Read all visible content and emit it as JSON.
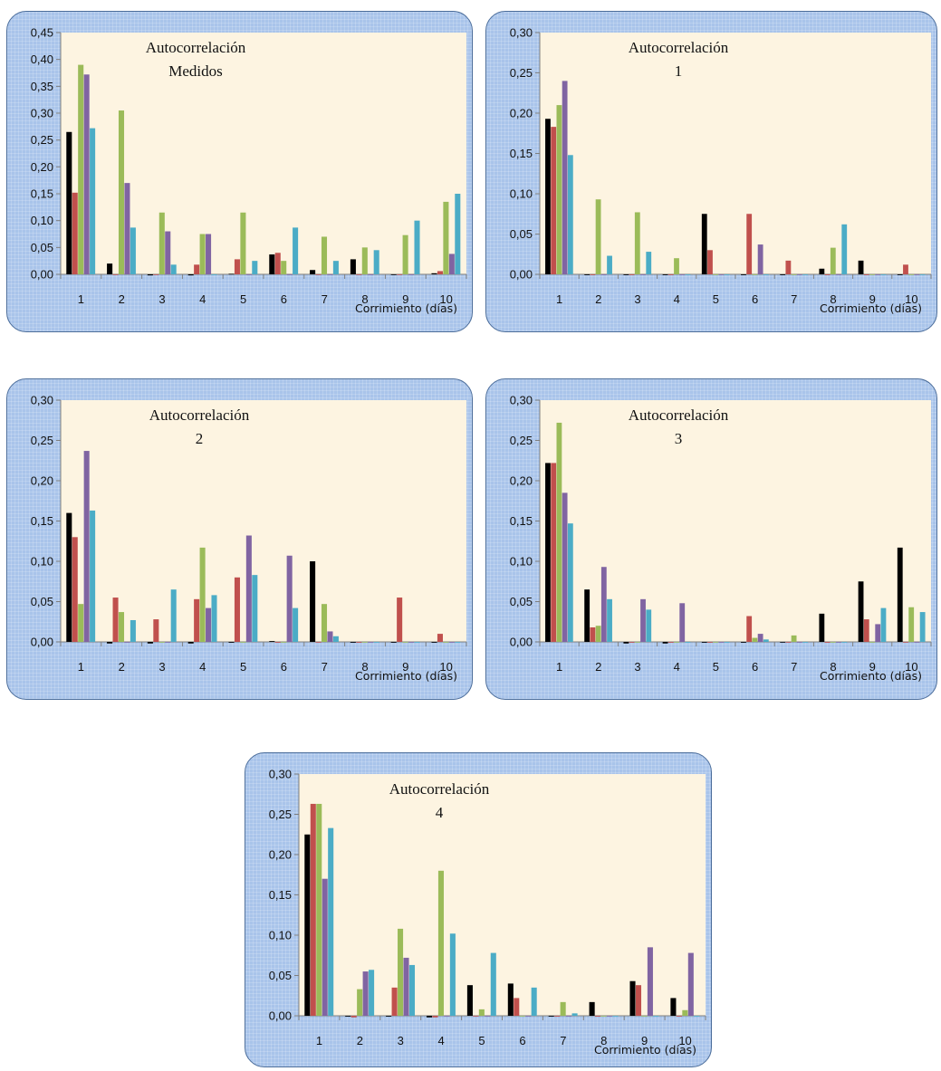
{
  "colors": {
    "series": [
      "#000000",
      "#c0504d",
      "#9bbb59",
      "#8064a2",
      "#4bacc6"
    ],
    "plot_background": "#fdf4e1",
    "panel_background": "#a9c4ea"
  },
  "chart_data": [
    {
      "type": "bar",
      "title_lines": [
        "Autocorrelación",
        "Medidos"
      ],
      "xlabel": "Corrimiento (días)",
      "ylim": [
        0,
        0.45
      ],
      "yticks": [
        "0,00",
        "0,05",
        "0,10",
        "0,15",
        "0,20",
        "0,25",
        "0,30",
        "0,35",
        "0,40",
        "0,45"
      ],
      "categories": [
        "1",
        "2",
        "3",
        "4",
        "5",
        "6",
        "7",
        "8",
        "9",
        "10"
      ],
      "grid": false,
      "legend": "none",
      "series": [
        {
          "values": [
            0.265,
            0.02,
            -0.002,
            -0.002,
            0.001,
            0.037,
            0.008,
            0.028,
            -0.001,
            0.002
          ]
        },
        {
          "values": [
            0.152,
            -0.001,
            0.0,
            0.018,
            0.028,
            0.04,
            -0.001,
            0.0,
            -0.001,
            0.006
          ]
        },
        {
          "values": [
            0.39,
            0.305,
            0.115,
            0.075,
            0.115,
            0.025,
            0.07,
            0.05,
            0.073,
            0.135
          ]
        },
        {
          "values": [
            0.372,
            0.17,
            0.08,
            0.075,
            0.0,
            0.0,
            0.0,
            -0.001,
            0.0,
            0.038
          ]
        },
        {
          "values": [
            0.272,
            0.087,
            0.018,
            0.0,
            0.025,
            0.087,
            0.025,
            0.045,
            0.1,
            0.15
          ]
        }
      ]
    },
    {
      "type": "bar",
      "title_lines": [
        "Autocorrelación",
        "1"
      ],
      "xlabel": "Corrimiento (días)",
      "ylim": [
        0,
        0.3
      ],
      "yticks": [
        "0,00",
        "0,05",
        "0,10",
        "0,15",
        "0,20",
        "0,25",
        "0,30"
      ],
      "categories": [
        "1",
        "2",
        "3",
        "4",
        "5",
        "6",
        "7",
        "8",
        "9",
        "10"
      ],
      "grid": false,
      "legend": "none",
      "series": [
        {
          "values": [
            0.193,
            -0.001,
            -0.001,
            -0.001,
            0.075,
            -0.001,
            -0.001,
            0.007,
            0.017,
            -0.001
          ]
        },
        {
          "values": [
            0.183,
            -0.001,
            -0.001,
            -0.001,
            0.03,
            0.075,
            0.017,
            -0.001,
            -0.001,
            0.012
          ]
        },
        {
          "values": [
            0.21,
            0.093,
            0.077,
            0.02,
            0.0,
            0.0,
            0.0,
            0.033,
            0.0,
            0.0
          ]
        },
        {
          "values": [
            0.24,
            0.0,
            0.0,
            0.0,
            0.0,
            0.037,
            0.0,
            0.0,
            0.0,
            0.0
          ]
        },
        {
          "values": [
            0.148,
            0.023,
            0.028,
            0.0,
            0.0,
            0.0,
            0.0,
            0.062,
            0.0,
            0.0
          ]
        }
      ]
    },
    {
      "type": "bar",
      "title_lines": [
        "Autocorrelación",
        "2"
      ],
      "xlabel": "Corrimiento (días)",
      "ylim": [
        0,
        0.3
      ],
      "yticks": [
        "0,00",
        "0,05",
        "0,10",
        "0,15",
        "0,20",
        "0,25",
        "0,30"
      ],
      "categories": [
        "1",
        "2",
        "3",
        "4",
        "5",
        "6",
        "7",
        "8",
        "9",
        "10"
      ],
      "grid": false,
      "legend": "none",
      "series": [
        {
          "values": [
            0.16,
            -0.002,
            -0.002,
            -0.002,
            -0.001,
            0.001,
            0.1,
            -0.001,
            -0.001,
            -0.001
          ]
        },
        {
          "values": [
            0.13,
            0.055,
            0.028,
            0.053,
            0.08,
            -0.001,
            0.0,
            -0.001,
            0.055,
            0.01
          ]
        },
        {
          "values": [
            0.047,
            0.037,
            0.0,
            0.117,
            0.0,
            0.0,
            0.047,
            0.0,
            0.0,
            0.0
          ]
        },
        {
          "values": [
            0.237,
            0.0,
            0.0,
            0.042,
            0.132,
            0.107,
            0.013,
            0.0,
            0.0,
            0.0
          ]
        },
        {
          "values": [
            0.163,
            0.027,
            0.065,
            0.058,
            0.083,
            0.042,
            0.007,
            0.0,
            0.0,
            0.0
          ]
        }
      ]
    },
    {
      "type": "bar",
      "title_lines": [
        "Autocorrelación",
        "3"
      ],
      "xlabel": "Corrimiento (días)",
      "ylim": [
        0,
        0.3
      ],
      "yticks": [
        "0,00",
        "0,05",
        "0,10",
        "0,15",
        "0,20",
        "0,25",
        "0,30"
      ],
      "categories": [
        "1",
        "2",
        "3",
        "4",
        "5",
        "6",
        "7",
        "8",
        "9",
        "10"
      ],
      "grid": false,
      "legend": "none",
      "series": [
        {
          "values": [
            0.222,
            0.065,
            -0.002,
            -0.002,
            -0.001,
            -0.001,
            0.0,
            0.035,
            0.075,
            0.117
          ]
        },
        {
          "values": [
            0.222,
            0.018,
            -0.001,
            -0.001,
            -0.001,
            0.032,
            0.0,
            -0.001,
            0.028,
            0.0
          ]
        },
        {
          "values": [
            0.272,
            0.02,
            0.0,
            0.0,
            0.0,
            0.005,
            0.008,
            0.0,
            0.0,
            0.043
          ]
        },
        {
          "values": [
            0.185,
            0.093,
            0.053,
            0.048,
            0.0,
            0.01,
            0.0,
            0.0,
            0.022,
            0.0
          ]
        },
        {
          "values": [
            0.147,
            0.053,
            0.04,
            0.0,
            0.0,
            0.003,
            0.0,
            0.0,
            0.042,
            0.037
          ]
        }
      ]
    },
    {
      "type": "bar",
      "title_lines": [
        "Autocorrelación",
        "4"
      ],
      "xlabel": "Corrimiento (días)",
      "ylim": [
        0,
        0.3
      ],
      "yticks": [
        "0,00",
        "0,05",
        "0,10",
        "0,15",
        "0,20",
        "0,25",
        "0,30"
      ],
      "categories": [
        "1",
        "2",
        "3",
        "4",
        "5",
        "6",
        "7",
        "8",
        "9",
        "10"
      ],
      "grid": false,
      "legend": "none",
      "series": [
        {
          "values": [
            0.225,
            -0.001,
            -0.001,
            -0.002,
            0.038,
            0.04,
            -0.001,
            0.017,
            0.043,
            0.022
          ]
        },
        {
          "values": [
            0.263,
            -0.002,
            0.035,
            -0.002,
            0.0,
            0.022,
            -0.001,
            -0.001,
            0.038,
            -0.001
          ]
        },
        {
          "values": [
            0.263,
            0.033,
            0.108,
            0.18,
            0.008,
            0.0,
            0.017,
            0.0,
            0.0,
            0.007
          ]
        },
        {
          "values": [
            0.17,
            0.055,
            0.072,
            0.0,
            0.0,
            0.0,
            0.0,
            0.0,
            0.085,
            0.078
          ]
        },
        {
          "values": [
            0.233,
            0.057,
            0.063,
            0.102,
            0.078,
            0.035,
            0.003,
            0.0,
            0.0,
            0.0
          ]
        }
      ]
    }
  ]
}
